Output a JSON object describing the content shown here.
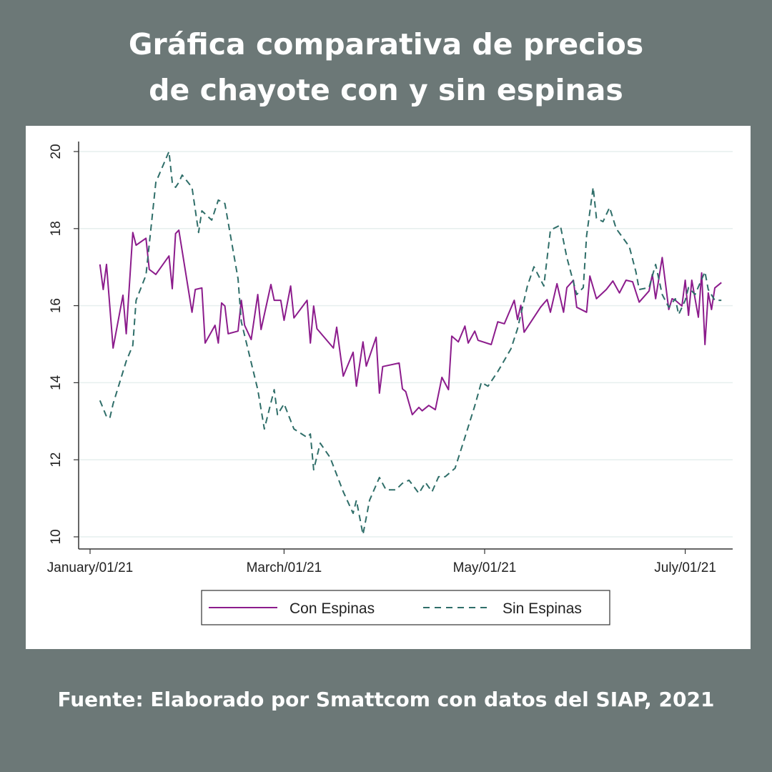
{
  "title_lines": [
    "Gráfica comparativa de precios",
    "de chayote con y sin espinas"
  ],
  "footer": "Fuente: Elaborado por Smattcom con datos del SIAP, 2021",
  "chart_data": {
    "type": "line",
    "xlabel": "",
    "ylabel": "",
    "ylim": [
      10,
      20
    ],
    "yticks": [
      "10",
      "12",
      "14",
      "16",
      "18",
      "20"
    ],
    "xticks": [
      {
        "date": "2021-01-01",
        "label": "January/01/21"
      },
      {
        "date": "2021-03-01",
        "label": "March/01/21"
      },
      {
        "date": "2021-05-01",
        "label": "May/01/21"
      },
      {
        "date": "2021-07-01",
        "label": "July/01/21"
      }
    ],
    "grid": true,
    "legend_placement": "bottom",
    "series": [
      {
        "name": "Con Espinas",
        "color": "#8c1c8c",
        "style": "solid",
        "points": [
          [
            "2021-01-04",
            17.07
          ],
          [
            "2021-01-05",
            16.42
          ],
          [
            "2021-01-06",
            17.07
          ],
          [
            "2021-01-08",
            14.9
          ],
          [
            "2021-01-11",
            16.27
          ],
          [
            "2021-01-12",
            15.27
          ],
          [
            "2021-01-14",
            17.9
          ],
          [
            "2021-01-15",
            17.57
          ],
          [
            "2021-01-18",
            17.75
          ],
          [
            "2021-01-19",
            16.94
          ],
          [
            "2021-01-21",
            16.81
          ],
          [
            "2021-01-25",
            17.29
          ],
          [
            "2021-01-26",
            16.44
          ],
          [
            "2021-01-27",
            17.87
          ],
          [
            "2021-01-28",
            17.96
          ],
          [
            "2021-02-01",
            15.83
          ],
          [
            "2021-02-02",
            16.42
          ],
          [
            "2021-02-04",
            16.46
          ],
          [
            "2021-02-05",
            15.03
          ],
          [
            "2021-02-08",
            15.49
          ],
          [
            "2021-02-09",
            15.03
          ],
          [
            "2021-02-10",
            16.07
          ],
          [
            "2021-02-11",
            15.99
          ],
          [
            "2021-02-12",
            15.27
          ],
          [
            "2021-02-15",
            15.34
          ],
          [
            "2021-02-16",
            16.14
          ],
          [
            "2021-02-17",
            15.49
          ],
          [
            "2021-02-19",
            15.12
          ],
          [
            "2021-02-21",
            16.29
          ],
          [
            "2021-02-22",
            15.38
          ],
          [
            "2021-02-25",
            16.55
          ],
          [
            "2021-02-26",
            16.14
          ],
          [
            "2021-02-28",
            16.14
          ],
          [
            "2021-03-01",
            15.62
          ],
          [
            "2021-03-03",
            16.51
          ],
          [
            "2021-03-04",
            15.68
          ],
          [
            "2021-03-08",
            16.14
          ],
          [
            "2021-03-09",
            15.03
          ],
          [
            "2021-03-10",
            15.99
          ],
          [
            "2021-03-11",
            15.4
          ],
          [
            "2021-03-16",
            14.9
          ],
          [
            "2021-03-17",
            15.44
          ],
          [
            "2021-03-19",
            14.17
          ],
          [
            "2021-03-22",
            14.79
          ],
          [
            "2021-03-23",
            13.91
          ],
          [
            "2021-03-25",
            15.06
          ],
          [
            "2021-03-26",
            14.43
          ],
          [
            "2021-03-29",
            15.18
          ],
          [
            "2021-03-30",
            13.73
          ],
          [
            "2021-03-31",
            14.42
          ],
          [
            "2021-04-05",
            14.51
          ],
          [
            "2021-04-06",
            13.84
          ],
          [
            "2021-04-07",
            13.77
          ],
          [
            "2021-04-09",
            13.17
          ],
          [
            "2021-04-11",
            13.36
          ],
          [
            "2021-04-12",
            13.27
          ],
          [
            "2021-04-14",
            13.41
          ],
          [
            "2021-04-16",
            13.3
          ],
          [
            "2021-04-18",
            14.14
          ],
          [
            "2021-04-20",
            13.82
          ],
          [
            "2021-04-21",
            15.21
          ],
          [
            "2021-04-23",
            15.06
          ],
          [
            "2021-04-25",
            15.47
          ],
          [
            "2021-04-26",
            15.03
          ],
          [
            "2021-04-28",
            15.34
          ],
          [
            "2021-04-29",
            15.1
          ],
          [
            "2021-05-03",
            14.99
          ],
          [
            "2021-05-05",
            15.58
          ],
          [
            "2021-05-07",
            15.53
          ],
          [
            "2021-05-10",
            16.14
          ],
          [
            "2021-05-11",
            15.64
          ],
          [
            "2021-05-12",
            16.01
          ],
          [
            "2021-05-13",
            15.31
          ],
          [
            "2021-05-18",
            15.96
          ],
          [
            "2021-05-20",
            16.16
          ],
          [
            "2021-05-21",
            15.83
          ],
          [
            "2021-05-23",
            16.57
          ],
          [
            "2021-05-25",
            15.83
          ],
          [
            "2021-05-26",
            16.47
          ],
          [
            "2021-05-28",
            16.66
          ],
          [
            "2021-05-29",
            15.96
          ],
          [
            "2021-06-01",
            15.83
          ],
          [
            "2021-06-02",
            16.77
          ],
          [
            "2021-06-04",
            16.18
          ],
          [
            "2021-06-07",
            16.42
          ],
          [
            "2021-06-09",
            16.64
          ],
          [
            "2021-06-11",
            16.33
          ],
          [
            "2021-06-13",
            16.66
          ],
          [
            "2021-06-15",
            16.62
          ],
          [
            "2021-06-17",
            16.09
          ],
          [
            "2021-06-20",
            16.38
          ],
          [
            "2021-06-21",
            16.81
          ],
          [
            "2021-06-22",
            16.18
          ],
          [
            "2021-06-24",
            17.25
          ],
          [
            "2021-06-26",
            15.9
          ],
          [
            "2021-06-27",
            16.18
          ],
          [
            "2021-06-28",
            16.14
          ],
          [
            "2021-06-30",
            15.99
          ],
          [
            "2021-07-01",
            16.66
          ],
          [
            "2021-07-02",
            15.75
          ],
          [
            "2021-07-03",
            16.66
          ],
          [
            "2021-07-05",
            15.7
          ],
          [
            "2021-07-06",
            16.85
          ],
          [
            "2021-07-07",
            14.99
          ],
          [
            "2021-07-08",
            16.33
          ],
          [
            "2021-07-09",
            15.9
          ],
          [
            "2021-07-10",
            16.46
          ],
          [
            "2021-07-12",
            16.6
          ]
        ]
      },
      {
        "name": "Sin Espinas",
        "color": "#2f6e69",
        "style": "dashed",
        "points": [
          [
            "2021-01-04",
            13.54
          ],
          [
            "2021-01-06",
            13.12
          ],
          [
            "2021-01-07",
            13.08
          ],
          [
            "2021-01-08",
            13.45
          ],
          [
            "2021-01-12",
            14.56
          ],
          [
            "2021-01-14",
            14.97
          ],
          [
            "2021-01-15",
            16.14
          ],
          [
            "2021-01-18",
            16.79
          ],
          [
            "2021-01-21",
            19.2
          ],
          [
            "2021-01-25",
            20.0
          ],
          [
            "2021-01-26",
            19.2
          ],
          [
            "2021-01-27",
            19.07
          ],
          [
            "2021-01-28",
            19.2
          ],
          [
            "2021-01-29",
            19.39
          ],
          [
            "2021-02-01",
            19.07
          ],
          [
            "2021-02-03",
            17.9
          ],
          [
            "2021-02-04",
            18.46
          ],
          [
            "2021-02-07",
            18.22
          ],
          [
            "2021-02-09",
            18.74
          ],
          [
            "2021-02-11",
            18.65
          ],
          [
            "2021-02-15",
            16.7
          ],
          [
            "2021-02-16",
            15.58
          ],
          [
            "2021-02-21",
            13.82
          ],
          [
            "2021-02-23",
            12.8
          ],
          [
            "2021-02-26",
            13.82
          ],
          [
            "2021-02-27",
            13.17
          ],
          [
            "2021-03-01",
            13.45
          ],
          [
            "2021-03-04",
            12.8
          ],
          [
            "2021-03-08",
            12.58
          ],
          [
            "2021-03-09",
            12.67
          ],
          [
            "2021-03-10",
            11.74
          ],
          [
            "2021-03-12",
            12.43
          ],
          [
            "2021-03-15",
            12.06
          ],
          [
            "2021-03-19",
            11.17
          ],
          [
            "2021-03-22",
            10.61
          ],
          [
            "2021-03-23",
            10.95
          ],
          [
            "2021-03-25",
            10.06
          ],
          [
            "2021-03-27",
            10.95
          ],
          [
            "2021-03-30",
            11.54
          ],
          [
            "2021-04-01",
            11.22
          ],
          [
            "2021-04-04",
            11.22
          ],
          [
            "2021-04-06",
            11.39
          ],
          [
            "2021-04-08",
            11.47
          ],
          [
            "2021-04-11",
            11.13
          ],
          [
            "2021-04-13",
            11.41
          ],
          [
            "2021-04-15",
            11.17
          ],
          [
            "2021-04-17",
            11.56
          ],
          [
            "2021-04-19",
            11.56
          ],
          [
            "2021-04-22",
            11.78
          ],
          [
            "2021-04-25",
            12.58
          ],
          [
            "2021-04-28",
            13.4
          ],
          [
            "2021-04-30",
            14.01
          ],
          [
            "2021-05-02",
            13.91
          ],
          [
            "2021-05-05",
            14.29
          ],
          [
            "2021-05-09",
            14.88
          ],
          [
            "2021-05-11",
            15.4
          ],
          [
            "2021-05-14",
            16.51
          ],
          [
            "2021-05-16",
            17.01
          ],
          [
            "2021-05-19",
            16.51
          ],
          [
            "2021-05-21",
            17.96
          ],
          [
            "2021-05-24",
            18.09
          ],
          [
            "2021-05-26",
            17.25
          ],
          [
            "2021-05-29",
            16.29
          ],
          [
            "2021-05-31",
            16.47
          ],
          [
            "2021-06-01",
            17.81
          ],
          [
            "2021-06-03",
            19.07
          ],
          [
            "2021-06-04",
            18.27
          ],
          [
            "2021-06-06",
            18.18
          ],
          [
            "2021-06-08",
            18.55
          ],
          [
            "2021-06-10",
            18.0
          ],
          [
            "2021-06-14",
            17.53
          ],
          [
            "2021-06-16",
            16.88
          ],
          [
            "2021-06-17",
            16.42
          ],
          [
            "2021-06-20",
            16.47
          ],
          [
            "2021-06-22",
            17.07
          ],
          [
            "2021-06-24",
            16.29
          ],
          [
            "2021-06-26",
            15.96
          ],
          [
            "2021-06-28",
            16.18
          ],
          [
            "2021-06-29",
            15.77
          ],
          [
            "2021-07-01",
            16.14
          ],
          [
            "2021-07-02",
            16.47
          ],
          [
            "2021-07-04",
            16.29
          ],
          [
            "2021-07-07",
            16.88
          ],
          [
            "2021-07-08",
            16.42
          ],
          [
            "2021-07-10",
            16.14
          ],
          [
            "2021-07-12",
            16.14
          ]
        ]
      }
    ]
  }
}
